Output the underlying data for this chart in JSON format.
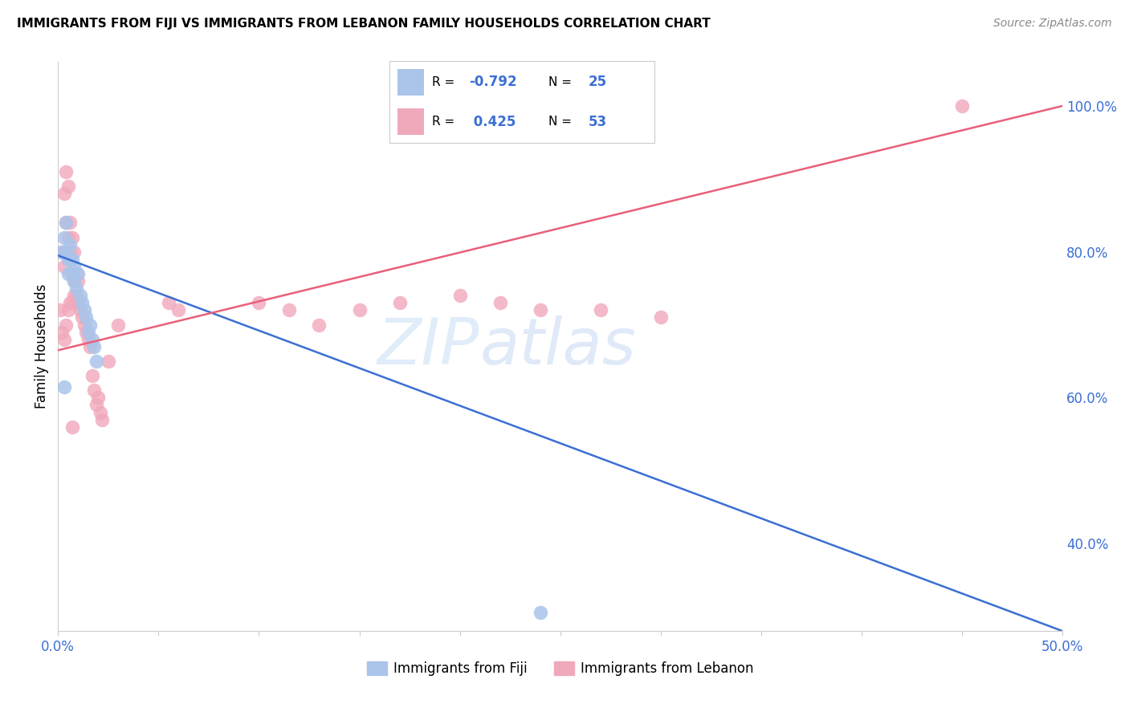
{
  "title": "IMMIGRANTS FROM FIJI VS IMMIGRANTS FROM LEBANON FAMILY HOUSEHOLDS CORRELATION CHART",
  "source": "Source: ZipAtlas.com",
  "ylabel": "Family Households",
  "xlim": [
    0.0,
    0.5
  ],
  "ylim": [
    0.28,
    1.06
  ],
  "xtick_positions": [
    0.0,
    0.05,
    0.1,
    0.15,
    0.2,
    0.25,
    0.3,
    0.35,
    0.4,
    0.45,
    0.5
  ],
  "xtick_labels": [
    "0.0%",
    "",
    "",
    "",
    "",
    "",
    "",
    "",
    "",
    "",
    "50.0%"
  ],
  "yticks_right": [
    0.4,
    0.6,
    0.8,
    1.0
  ],
  "ytick_right_labels": [
    "40.0%",
    "60.0%",
    "80.0%",
    "100.0%"
  ],
  "legend_fiji_R": "-0.792",
  "legend_fiji_N": "25",
  "legend_leb_R": "0.425",
  "legend_leb_N": "53",
  "fiji_color": "#aac4ea",
  "lebanon_color": "#f0a8bb",
  "fiji_line_color": "#3b6fd4",
  "lebanon_line_color": "#e8607a",
  "fiji_line_x0": 0.0,
  "fiji_line_y0": 0.795,
  "fiji_line_x1": 0.5,
  "fiji_line_y1": 0.28,
  "leb_line_x0": 0.0,
  "leb_line_y0": 0.665,
  "leb_line_x1": 0.5,
  "leb_line_y1": 1.0,
  "fiji_x": [
    0.002,
    0.003,
    0.004,
    0.004,
    0.005,
    0.005,
    0.006,
    0.006,
    0.007,
    0.007,
    0.008,
    0.008,
    0.009,
    0.01,
    0.011,
    0.012,
    0.013,
    0.014,
    0.015,
    0.016,
    0.017,
    0.018,
    0.019,
    0.24,
    0.003
  ],
  "fiji_y": [
    0.8,
    0.82,
    0.8,
    0.84,
    0.79,
    0.77,
    0.79,
    0.81,
    0.79,
    0.77,
    0.78,
    0.76,
    0.75,
    0.77,
    0.74,
    0.73,
    0.72,
    0.71,
    0.69,
    0.7,
    0.68,
    0.67,
    0.65,
    0.305,
    0.615
  ],
  "leb_x": [
    0.001,
    0.002,
    0.002,
    0.003,
    0.003,
    0.003,
    0.004,
    0.004,
    0.004,
    0.005,
    0.005,
    0.005,
    0.006,
    0.006,
    0.006,
    0.007,
    0.007,
    0.007,
    0.008,
    0.008,
    0.008,
    0.009,
    0.009,
    0.01,
    0.01,
    0.011,
    0.012,
    0.013,
    0.014,
    0.015,
    0.016,
    0.017,
    0.018,
    0.019,
    0.02,
    0.021,
    0.022,
    0.025,
    0.03,
    0.055,
    0.06,
    0.1,
    0.115,
    0.13,
    0.15,
    0.17,
    0.2,
    0.22,
    0.24,
    0.27,
    0.3,
    0.45,
    0.007
  ],
  "leb_y": [
    0.72,
    0.69,
    0.8,
    0.68,
    0.78,
    0.88,
    0.7,
    0.84,
    0.91,
    0.72,
    0.82,
    0.89,
    0.73,
    0.8,
    0.84,
    0.73,
    0.77,
    0.82,
    0.74,
    0.76,
    0.8,
    0.74,
    0.77,
    0.73,
    0.76,
    0.72,
    0.71,
    0.7,
    0.69,
    0.68,
    0.67,
    0.63,
    0.61,
    0.59,
    0.6,
    0.58,
    0.57,
    0.65,
    0.7,
    0.73,
    0.72,
    0.73,
    0.72,
    0.7,
    0.72,
    0.73,
    0.74,
    0.73,
    0.72,
    0.72,
    0.71,
    1.0,
    0.56
  ]
}
